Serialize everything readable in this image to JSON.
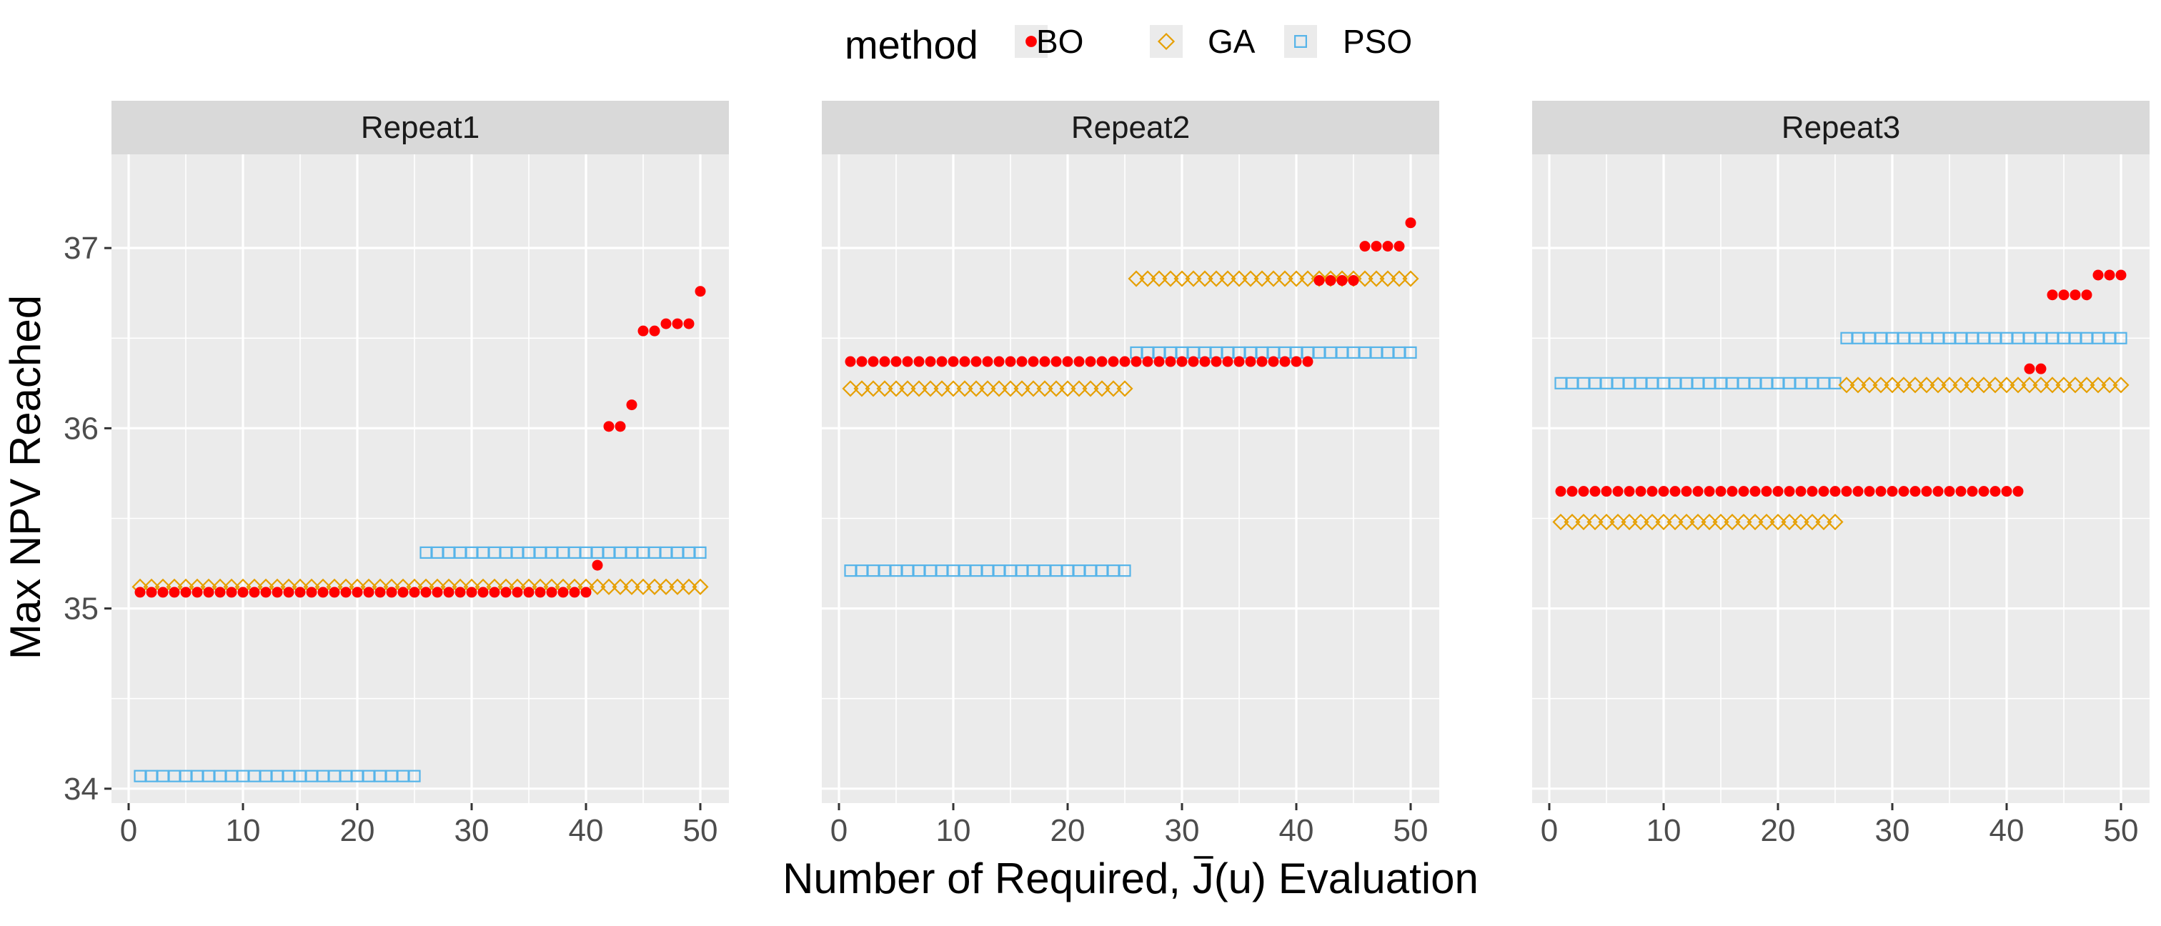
{
  "chart_data": {
    "type": "scatter",
    "xlabel_prefix": "Number of Required, ",
    "xlabel_symbol": "J",
    "xlabel_suffix": "(u) Evaluation",
    "ylabel": "Max NPV Reached",
    "xlim": [
      -1.5,
      52.5
    ],
    "ylim": [
      33.92,
      37.52
    ],
    "x_ticks": [
      0,
      10,
      20,
      30,
      40,
      50
    ],
    "y_ticks": [
      34,
      35,
      36,
      37
    ],
    "grid": true,
    "legend": {
      "title": "method",
      "position": "top",
      "entries": [
        {
          "name": "BO",
          "shape": "circle",
          "color": "#FF0000"
        },
        {
          "name": "GA",
          "shape": "diamond",
          "color": "#E69F00"
        },
        {
          "name": "PSO",
          "shape": "square",
          "color": "#56B4E9"
        }
      ]
    },
    "panels": [
      {
        "title": "Repeat1",
        "series": [
          {
            "name": "BO",
            "segments": [
              {
                "from": 1,
                "to": 40,
                "y": 35.09
              },
              {
                "from": 41,
                "to": 41,
                "y": 35.24
              },
              {
                "from": 42,
                "to": 43,
                "y": 36.01
              },
              {
                "from": 44,
                "to": 44,
                "y": 36.13
              },
              {
                "from": 45,
                "to": 46,
                "y": 36.54
              },
              {
                "from": 47,
                "to": 49,
                "y": 36.58
              },
              {
                "from": 50,
                "to": 50,
                "y": 36.76
              }
            ]
          },
          {
            "name": "GA",
            "segments": [
              {
                "from": 1,
                "to": 50,
                "y": 35.12
              }
            ]
          },
          {
            "name": "PSO",
            "segments": [
              {
                "from": 1,
                "to": 25,
                "y": 34.07
              },
              {
                "from": 26,
                "to": 50,
                "y": 35.31
              }
            ]
          }
        ]
      },
      {
        "title": "Repeat2",
        "series": [
          {
            "name": "BO",
            "segments": [
              {
                "from": 1,
                "to": 41,
                "y": 36.37
              },
              {
                "from": 42,
                "to": 45,
                "y": 36.82
              },
              {
                "from": 46,
                "to": 49,
                "y": 37.01
              },
              {
                "from": 50,
                "to": 50,
                "y": 37.14
              }
            ]
          },
          {
            "name": "GA",
            "segments": [
              {
                "from": 1,
                "to": 25,
                "y": 36.22
              },
              {
                "from": 26,
                "to": 50,
                "y": 36.83
              }
            ]
          },
          {
            "name": "PSO",
            "segments": [
              {
                "from": 1,
                "to": 25,
                "y": 35.21
              },
              {
                "from": 26,
                "to": 50,
                "y": 36.42
              }
            ]
          }
        ]
      },
      {
        "title": "Repeat3",
        "series": [
          {
            "name": "BO",
            "segments": [
              {
                "from": 1,
                "to": 41,
                "y": 35.65
              },
              {
                "from": 42,
                "to": 43,
                "y": 36.33
              },
              {
                "from": 44,
                "to": 47,
                "y": 36.74
              },
              {
                "from": 48,
                "to": 50,
                "y": 36.85
              }
            ]
          },
          {
            "name": "GA",
            "segments": [
              {
                "from": 1,
                "to": 25,
                "y": 35.48
              },
              {
                "from": 26,
                "to": 50,
                "y": 36.24
              }
            ]
          },
          {
            "name": "PSO",
            "segments": [
              {
                "from": 1,
                "to": 25,
                "y": 36.25
              },
              {
                "from": 26,
                "to": 50,
                "y": 36.5
              }
            ]
          }
        ]
      }
    ]
  }
}
